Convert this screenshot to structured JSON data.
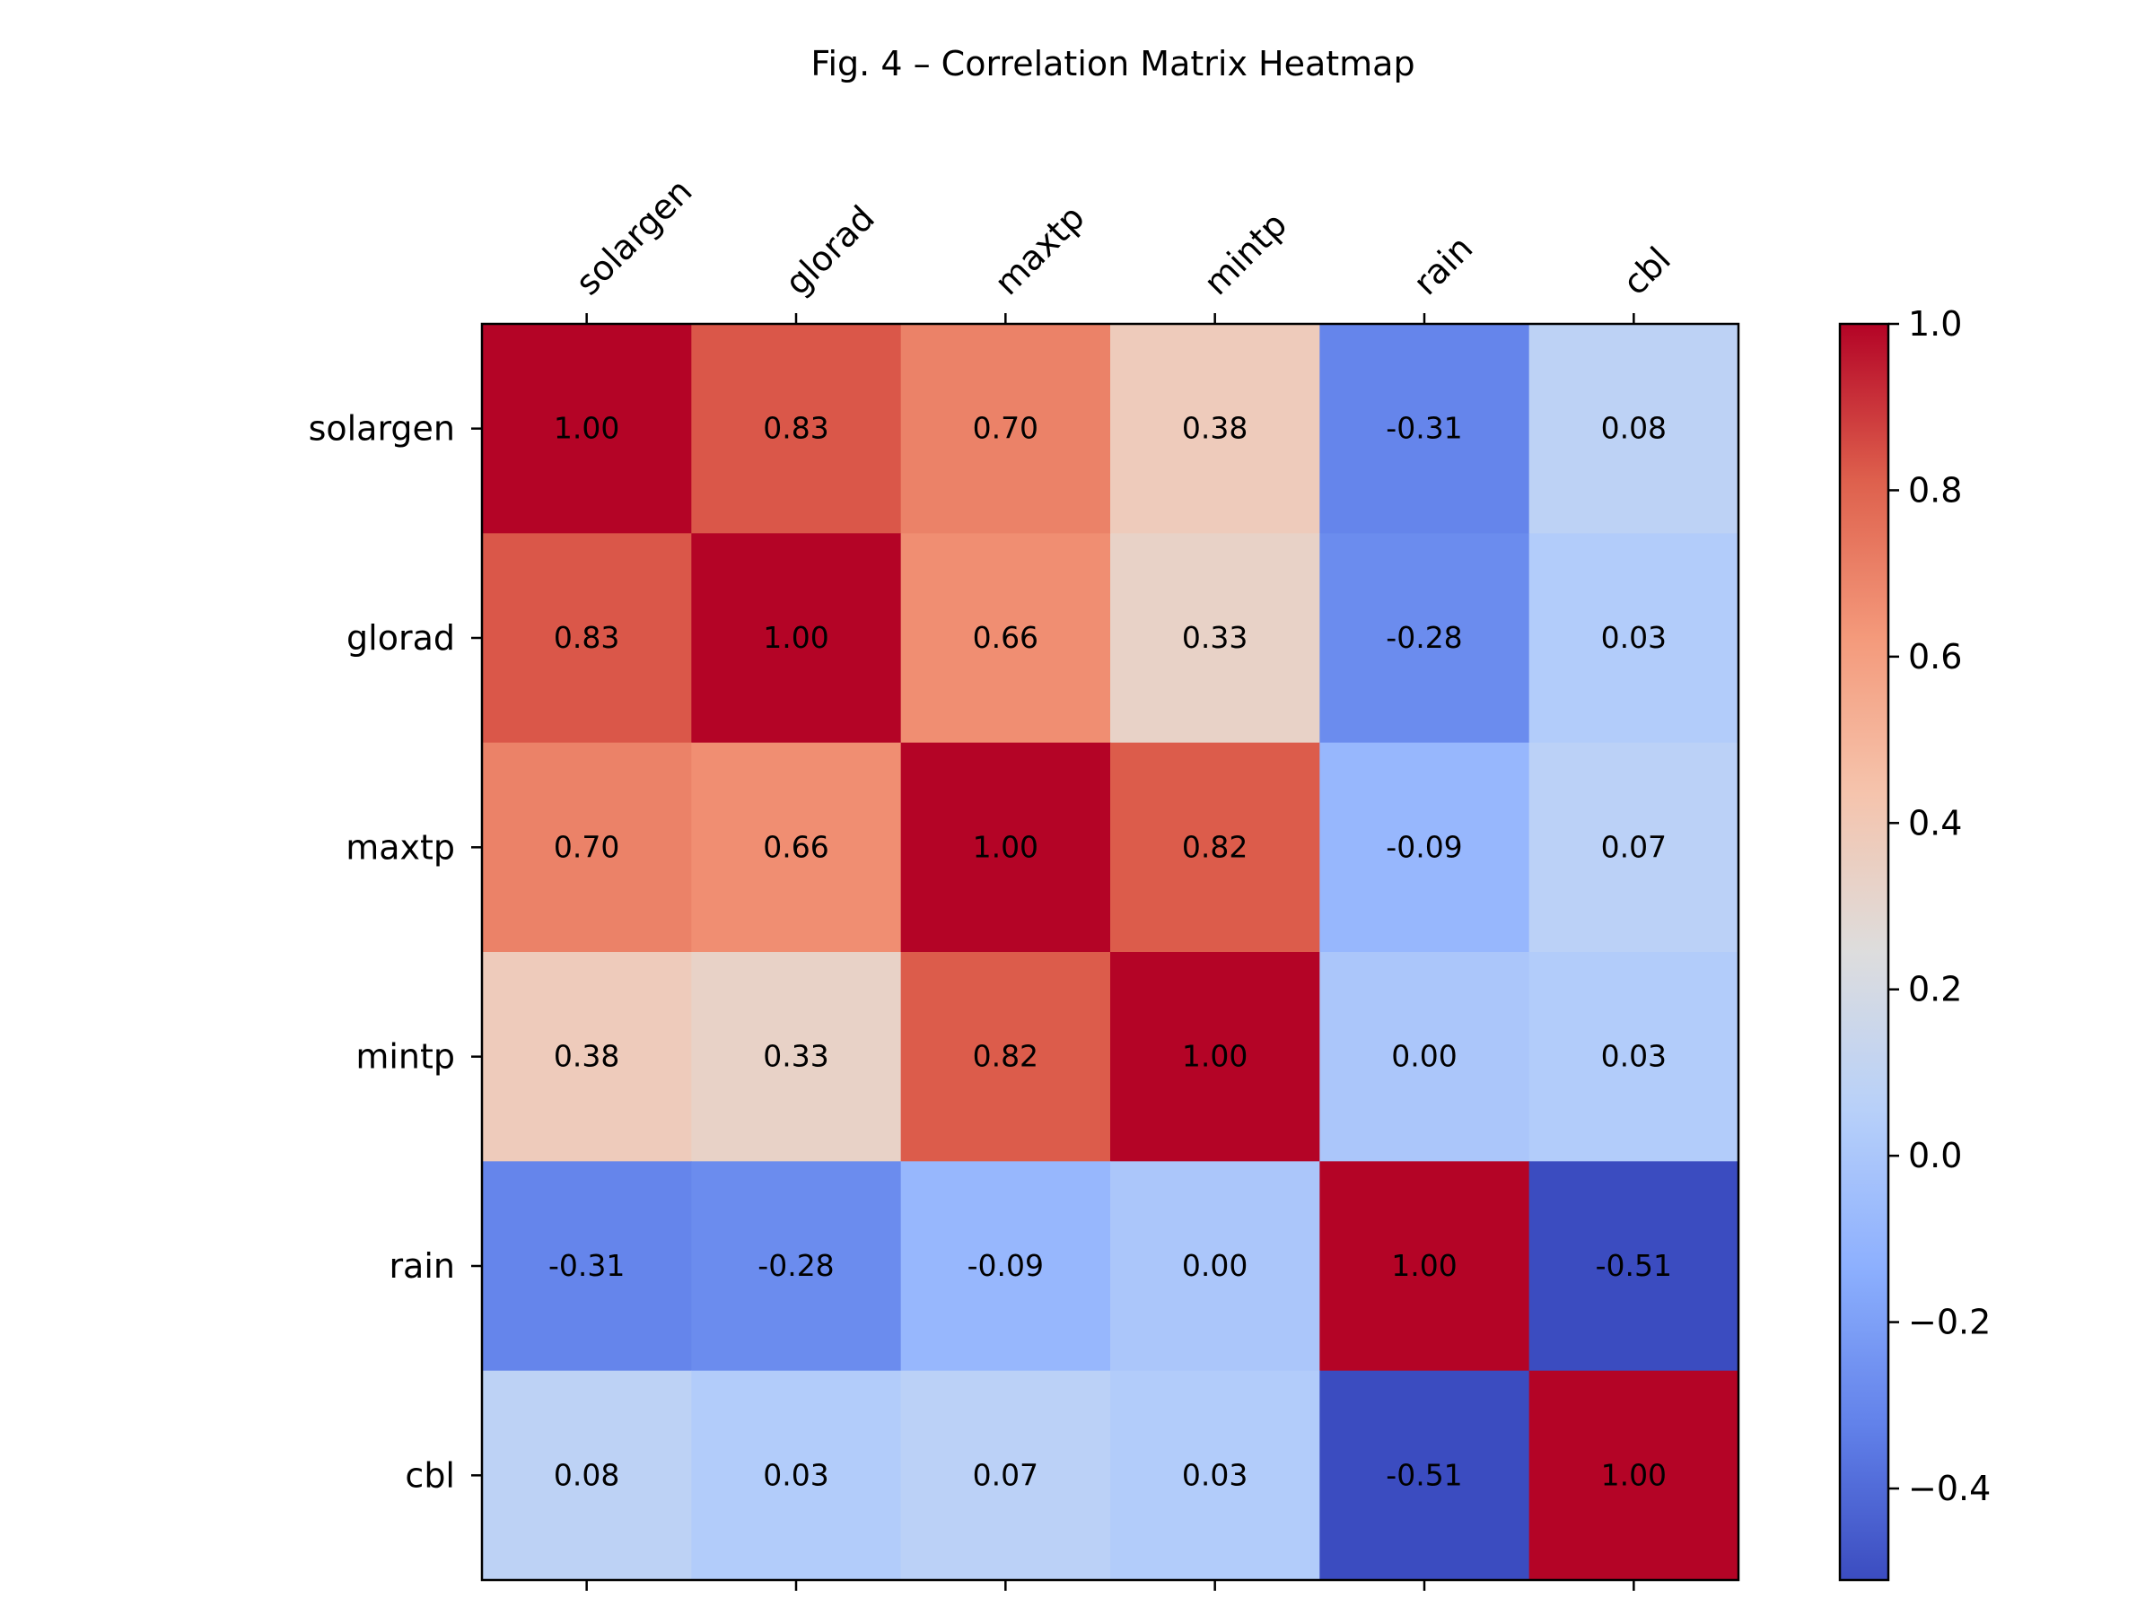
{
  "chart_data": {
    "type": "heatmap",
    "title": "Fig. 4 – Correlation Matrix Heatmap",
    "x_labels": [
      "solargen",
      "glorad",
      "maxtp",
      "mintp",
      "rain",
      "cbl"
    ],
    "y_labels": [
      "solargen",
      "glorad",
      "maxtp",
      "mintp",
      "rain",
      "cbl"
    ],
    "values": [
      [
        1.0,
        0.83,
        0.7,
        0.38,
        -0.31,
        0.08
      ],
      [
        0.83,
        1.0,
        0.66,
        0.33,
        -0.28,
        0.03
      ],
      [
        0.7,
        0.66,
        1.0,
        0.82,
        -0.09,
        0.07
      ],
      [
        0.38,
        0.33,
        0.82,
        1.0,
        0.0,
        0.03
      ],
      [
        -0.31,
        -0.28,
        -0.09,
        0.0,
        1.0,
        -0.51
      ],
      [
        0.08,
        0.03,
        0.07,
        0.03,
        -0.51,
        1.0
      ]
    ],
    "value_format": "0.00",
    "colormap": "coolwarm",
    "colorbar": {
      "range": [
        -0.51,
        1.0
      ],
      "ticks": [
        -0.4,
        -0.2,
        0.0,
        0.2,
        0.4,
        0.6,
        0.8,
        1.0
      ],
      "tick_labels": [
        "−0.4",
        "−0.2",
        "0.0",
        "0.2",
        "0.4",
        "0.6",
        "0.8",
        "1.0"
      ]
    },
    "x_tick_position": "top",
    "x_tick_rotation": -45,
    "grid": false
  }
}
